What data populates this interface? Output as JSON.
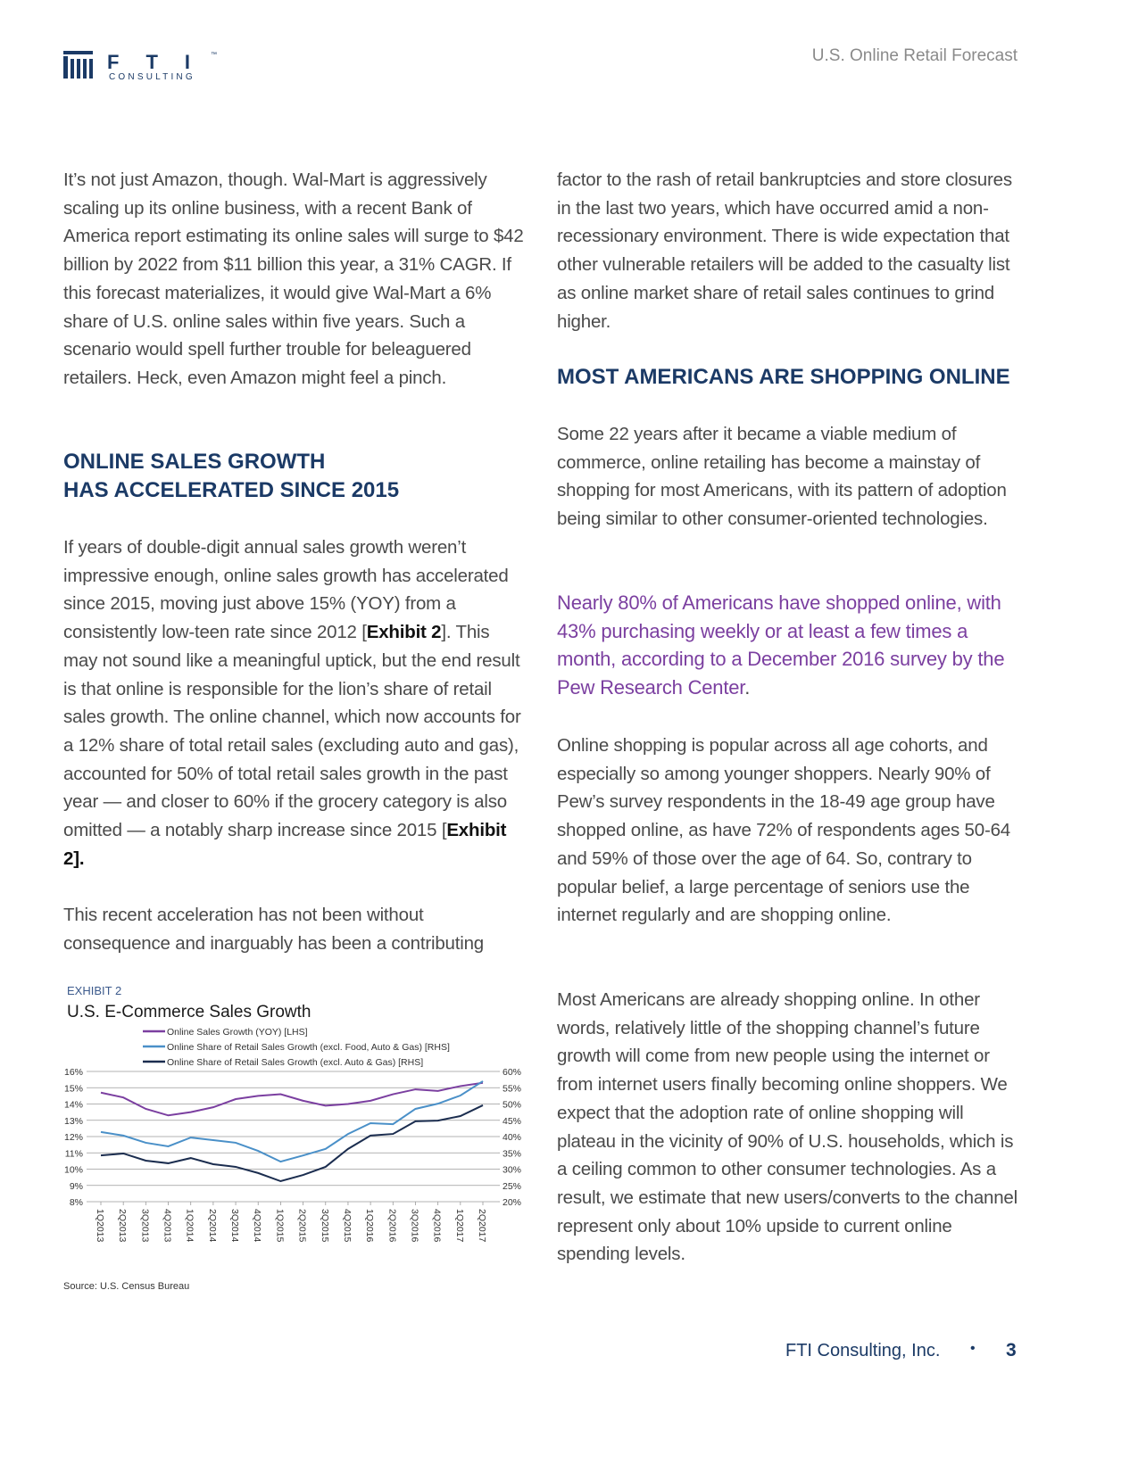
{
  "header": {
    "logo": "FTI",
    "trademark": "™",
    "logo_sub": "CONSULTING",
    "title": "U.S. Online Retail Forecast"
  },
  "left": {
    "p1": [
      "It’s not just Amazon, though. Wal-Mart is aggressively scaling up its online business, with a recent Bank of America report estimating its online sales will surge to $42 billion by 2022 from $11 billion this year, a 31% CAGR. If this forecast materializes, it would give Wal-Mart a 6% share of U.S. online sales within five years. Such a scenario would spell further trouble for beleaguered retailers. Heck, even Amazon might feel a pinch."
    ],
    "heading": [
      "ONLINE SALES GROWTH",
      "HAS ACCELERATED SINCE 2015"
    ],
    "p2": [
      "If years of double-digit annual sales growth weren’t impressive enough, online sales growth has accelerated since 2015, moving just above 15% (YOY) from a consistently low-teen rate since 2012 [",
      "Exhibit 2",
      "]. This may not sound like a meaningful uptick, but the end result is that online is responsible for the lion’s share of retail sales growth. The online channel, which now accounts for a 12% share of total retail sales (excluding auto and gas), accounted for 50% of total retail sales growth in the past year — and closer to 60% if the grocery category is also omitted — a notably sharp increase since 2015 [",
      "Exhibit 2]."
    ],
    "p3": [
      "This recent acceleration has not been without consequence and inarguably has been a contributing"
    ]
  },
  "chart_data": {
    "type": "line",
    "label": "EXHIBIT 2",
    "title": "U.S. E-Commerce Sales Growth",
    "source": "Source: U.S. Census Bureau",
    "categories": [
      "1Q2013",
      "2Q2013",
      "3Q2013",
      "4Q2013",
      "1Q2014",
      "2Q2014",
      "3Q2014",
      "4Q2014",
      "1Q2015",
      "2Q2015",
      "3Q2015",
      "4Q2015",
      "1Q2016",
      "2Q2016",
      "3Q2016",
      "4Q2016",
      "1Q2017",
      "2Q2017"
    ],
    "series": [
      {
        "name": "Online Sales Growth (YOY) [LHS]",
        "color": "#7b3fa0",
        "values": [
          14.7,
          14.4,
          13.7,
          13.3,
          13.5,
          13.8,
          14.3,
          14.5,
          14.6,
          14.2,
          13.9,
          14.0,
          14.2,
          14.6,
          14.9,
          14.8,
          15.1,
          15.3
        ]
      },
      {
        "name": "Online Share of Retail Sales Growth (excl. Food, Auto & Gas) [RHS]",
        "color": "#4a90c8",
        "axis": "y2",
        "values": [
          41.4,
          40.3,
          38.1,
          37.0,
          39.7,
          38.9,
          38.1,
          35.6,
          32.3,
          34.2,
          36.2,
          40.8,
          44.1,
          43.8,
          48.5,
          50.1,
          52.6,
          57.0
        ]
      },
      {
        "name": "Online Share of Retail Sales Growth (excl. Auto & Gas) [RHS]",
        "color": "#1b2d4f",
        "axis": "y2",
        "values": [
          34.2,
          34.8,
          32.6,
          31.8,
          33.4,
          31.5,
          30.7,
          28.8,
          26.3,
          28.2,
          30.7,
          36.2,
          40.3,
          40.8,
          44.7,
          44.9,
          46.3,
          49.6
        ]
      }
    ],
    "ylim": [
      8,
      16
    ],
    "yticks": [
      {
        "value": 8,
        "label": "8%"
      },
      {
        "value": 9,
        "label": "9%"
      },
      {
        "value": 10,
        "label": "10%"
      },
      {
        "value": 11,
        "label": "11%"
      },
      {
        "value": 12,
        "label": "12%"
      },
      {
        "value": 13,
        "label": "13%"
      },
      {
        "value": 14,
        "label": "14%"
      },
      {
        "value": 15,
        "label": "15%"
      },
      {
        "value": 16,
        "label": "16%"
      }
    ],
    "y2lim": [
      20,
      60
    ],
    "y2ticks": [
      {
        "value": 20,
        "label": "20%"
      },
      {
        "value": 25,
        "label": "25%"
      },
      {
        "value": 30,
        "label": "30%"
      },
      {
        "value": 35,
        "label": "35%"
      },
      {
        "value": 40,
        "label": "40%"
      },
      {
        "value": 45,
        "label": "45%"
      },
      {
        "value": 50,
        "label": "50%"
      },
      {
        "value": 55,
        "label": "55%"
      },
      {
        "value": 60,
        "label": "60%"
      }
    ],
    "grid": true
  },
  "right": {
    "p3_cont": [
      "factor to the rash of retail bankruptcies and store closures in the last two years, which have occurred amid a non-recessionary environment. There is wide expectation that other vulnerable retailers will be added to the casualty list as online market share of retail sales continues to grind higher."
    ],
    "heading": [
      "MOST AMERICANS ARE SHOPPING ONLINE"
    ],
    "p4": [
      "Some 22 years after it became a viable medium of commerce, online retailing has become a mainstay of shopping for most Americans, with its pattern of adoption being similar to other consumer-oriented technologies."
    ],
    "quote": [
      "Nearly 80% of Americans have shopped online, with 43% purchasing weekly or at least a few times a month, according to a December 2016 survey by the Pew Research Center",
      "."
    ],
    "p5": [
      "Online shopping is popular across all age cohorts, and especially so among younger shoppers. Nearly 90% of Pew’s survey respondents in the 18-49 age group have shopped online, as have 72% of respondents ages 50-64 and 59% of those over the age of 64. So, contrary to popular belief, a large percentage of seniors use the internet regularly and are shopping online."
    ],
    "p6": [
      "Most Americans are already shopping online. In other words, relatively little of the shopping channel’s future growth will come from new people using the internet or from internet users finally becoming online shoppers. We expect that the adoption rate of online shopping will plateau in the vicinity of 90% of U.S. households, which is a ceiling common to other consumer technologies. As a result, we estimate that new users/converts to the channel represent only about 10% upside to current online spending levels."
    ]
  },
  "footer": {
    "company": "FTI Consulting, Inc.",
    "separator": "•",
    "page": "3"
  }
}
